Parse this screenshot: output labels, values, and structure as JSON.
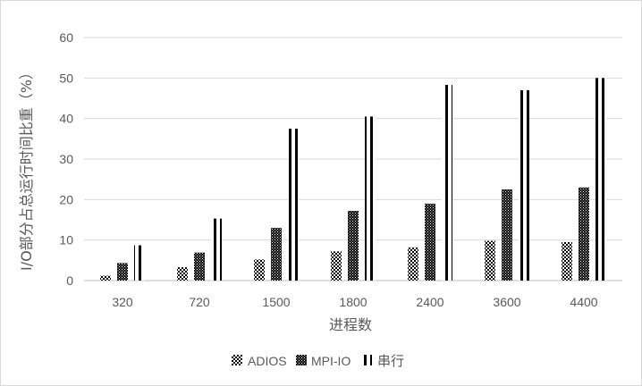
{
  "chart_data": {
    "type": "bar",
    "title": "",
    "xlabel": "进程数",
    "ylabel": "I/O部分占总运行时间比重（%）",
    "categories": [
      "320",
      "720",
      "1500",
      "1800",
      "2400",
      "3600",
      "4400"
    ],
    "series": [
      {
        "name": "ADIOS",
        "pattern": "checker-light",
        "values": [
          1.2,
          3.3,
          5.2,
          7.2,
          8.2,
          9.8,
          9.5
        ]
      },
      {
        "name": "MPI-IO",
        "pattern": "checker-dense",
        "values": [
          4.3,
          6.9,
          13.0,
          17.2,
          19.0,
          22.5,
          23.0
        ]
      },
      {
        "name": "串行",
        "pattern": "vertical-stripes",
        "values": [
          8.7,
          15.3,
          37.5,
          40.5,
          48.3,
          47.0,
          50.0
        ]
      }
    ],
    "ylim": [
      0,
      60
    ],
    "yticks": [
      0,
      10,
      20,
      30,
      40,
      50,
      60
    ],
    "grid": true,
    "legend": "bottom",
    "colors": {
      "ink": "#000000",
      "grid": "#d9d9d9",
      "axis": "#bfbfbf",
      "text": "#595959"
    }
  }
}
